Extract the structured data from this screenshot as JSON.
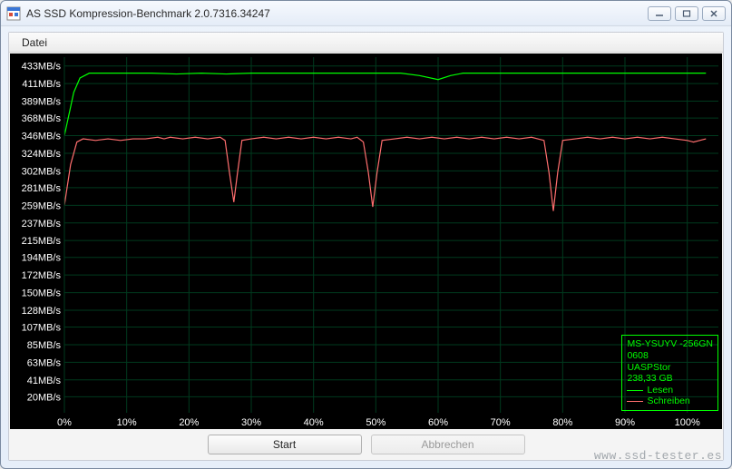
{
  "window": {
    "title": "AS SSD Kompression-Benchmark 2.0.7316.34247",
    "controls": {
      "minimize": "_",
      "maximize": "▢",
      "close": "✕"
    }
  },
  "menu": {
    "file": "Datei"
  },
  "chart": {
    "type": "line",
    "background_color": "#000000",
    "grid_color": "#003a1e",
    "axis_text_color": "#ffffff",
    "axis_fontsize": 11,
    "y": {
      "unit": "MB/s",
      "min": 0,
      "max": 444,
      "ticks": [
        20,
        41,
        63,
        85,
        107,
        128,
        150,
        172,
        194,
        215,
        237,
        259,
        281,
        302,
        324,
        346,
        368,
        389,
        411,
        433
      ]
    },
    "x": {
      "unit": "%",
      "min": 0,
      "max": 105,
      "ticks": [
        0,
        10,
        20,
        30,
        40,
        50,
        60,
        70,
        80,
        90,
        100
      ]
    },
    "series": {
      "read": {
        "label": "Lesen",
        "color": "#00ff00",
        "line_width": 1.2,
        "points": [
          [
            0,
            346
          ],
          [
            1.5,
            400
          ],
          [
            2.5,
            418
          ],
          [
            4,
            424
          ],
          [
            6,
            424
          ],
          [
            10,
            424
          ],
          [
            14,
            424
          ],
          [
            18,
            423
          ],
          [
            22,
            424
          ],
          [
            26,
            423
          ],
          [
            30,
            424
          ],
          [
            34,
            424
          ],
          [
            38,
            424
          ],
          [
            42,
            424
          ],
          [
            46,
            424
          ],
          [
            50,
            424
          ],
          [
            54,
            424
          ],
          [
            57,
            421
          ],
          [
            60,
            416
          ],
          [
            62,
            421
          ],
          [
            64,
            424
          ],
          [
            68,
            424
          ],
          [
            72,
            424
          ],
          [
            76,
            424
          ],
          [
            80,
            424
          ],
          [
            84,
            424
          ],
          [
            88,
            424
          ],
          [
            92,
            424
          ],
          [
            96,
            424
          ],
          [
            100,
            424
          ],
          [
            103,
            424
          ]
        ]
      },
      "write": {
        "label": "Schreiben",
        "color": "#ff6e6e",
        "line_width": 1.2,
        "points": [
          [
            0,
            259
          ],
          [
            1,
            310
          ],
          [
            2,
            338
          ],
          [
            3,
            342
          ],
          [
            5,
            340
          ],
          [
            7,
            342
          ],
          [
            9,
            340
          ],
          [
            11,
            342
          ],
          [
            13,
            342
          ],
          [
            15,
            344
          ],
          [
            16,
            342
          ],
          [
            17,
            344
          ],
          [
            19,
            342
          ],
          [
            21,
            344
          ],
          [
            23,
            342
          ],
          [
            25,
            344
          ],
          [
            25.8,
            340
          ],
          [
            26.5,
            300
          ],
          [
            27.2,
            263
          ],
          [
            27.8,
            300
          ],
          [
            28.5,
            340
          ],
          [
            30,
            342
          ],
          [
            32,
            344
          ],
          [
            34,
            342
          ],
          [
            36,
            344
          ],
          [
            38,
            342
          ],
          [
            40,
            344
          ],
          [
            42,
            342
          ],
          [
            44,
            344
          ],
          [
            46,
            342
          ],
          [
            47,
            344
          ],
          [
            48,
            338
          ],
          [
            48.8,
            300
          ],
          [
            49.5,
            257
          ],
          [
            50.2,
            300
          ],
          [
            51,
            340
          ],
          [
            53,
            342
          ],
          [
            55,
            344
          ],
          [
            57,
            342
          ],
          [
            59,
            344
          ],
          [
            61,
            342
          ],
          [
            63,
            344
          ],
          [
            65,
            342
          ],
          [
            67,
            344
          ],
          [
            69,
            342
          ],
          [
            71,
            344
          ],
          [
            73,
            342
          ],
          [
            75,
            344
          ],
          [
            76,
            342
          ],
          [
            77,
            340
          ],
          [
            77.8,
            300
          ],
          [
            78.5,
            252
          ],
          [
            79.2,
            300
          ],
          [
            80,
            340
          ],
          [
            82,
            342
          ],
          [
            84,
            344
          ],
          [
            86,
            342
          ],
          [
            88,
            344
          ],
          [
            90,
            342
          ],
          [
            92,
            344
          ],
          [
            94,
            342
          ],
          [
            96,
            344
          ],
          [
            98,
            342
          ],
          [
            100,
            340
          ],
          [
            101,
            338
          ],
          [
            102,
            340
          ],
          [
            103,
            342
          ]
        ]
      }
    },
    "legend": {
      "device": "MS-YSUYV -256GN",
      "firmware": "0608",
      "controller": "UASPStor",
      "capacity": "238,33 GB",
      "read_label": "Lesen",
      "write_label": "Schreiben",
      "border_color": "#00ff00",
      "text_color": "#00ff00"
    }
  },
  "buttons": {
    "start": {
      "label": "Start",
      "enabled": true
    },
    "abort": {
      "label": "Abbrechen",
      "enabled": false
    }
  },
  "watermark": "www.ssd-tester.es"
}
